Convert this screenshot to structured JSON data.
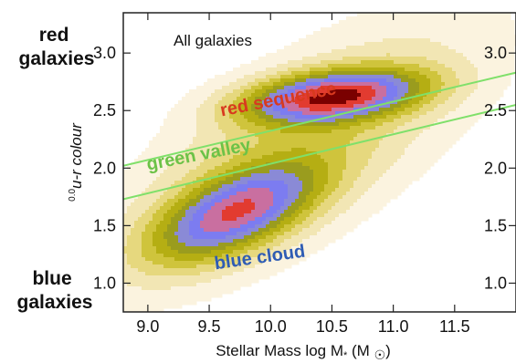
{
  "chart_data": {
    "type": "contour",
    "title": "All galaxies",
    "xlabel": "Stellar Mass log M* (M☉)",
    "ylabel": "0.0u-r colour",
    "ylabel_superscript": "0.0",
    "ylabel_text": "u-r colour",
    "xlim": [
      8.8,
      12.0
    ],
    "ylim": [
      0.75,
      3.35
    ],
    "x_ticks": [
      "9.0",
      "9.5",
      "10.0",
      "10.5",
      "11.0",
      "11.5"
    ],
    "x_tick_values": [
      9.0,
      9.5,
      10.0,
      10.5,
      11.0,
      11.5
    ],
    "y_ticks": [
      "1.0",
      "1.5",
      "2.0",
      "2.5",
      "3.0"
    ],
    "y_tick_values": [
      1.0,
      1.5,
      2.0,
      2.5,
      3.0
    ],
    "y_ticks_right": [
      "1.0",
      "1.5",
      "2.0",
      "2.5",
      "3.0"
    ],
    "side_labels": {
      "top": "red\ngalaxies",
      "bottom": "blue\ngalaxies"
    },
    "annotations": [
      {
        "text": "red sequence",
        "x": 9.6,
        "y": 2.45,
        "color": "#d83a1f",
        "rotate": -11
      },
      {
        "text": "green valley",
        "x": 9.0,
        "y": 1.98,
        "color": "#6cc247",
        "rotate": -11
      },
      {
        "text": "blue cloud",
        "x": 9.55,
        "y": 1.12,
        "color": "#2f5cb4",
        "rotate": -8
      }
    ],
    "green_valley_lines": [
      {
        "x": [
          8.8,
          12.0
        ],
        "y": [
          2.02,
          2.83
        ],
        "color": "#7fe06a"
      },
      {
        "x": [
          8.8,
          12.0
        ],
        "y": [
          1.73,
          2.55
        ],
        "color": "#7fe06a"
      }
    ],
    "peaks": [
      {
        "name": "red sequence peak",
        "x": 10.52,
        "y": 2.62
      },
      {
        "name": "blue cloud peak",
        "x": 9.72,
        "y": 1.62
      }
    ],
    "contour_levels": 11,
    "colormap": [
      "#ffffff",
      "#fbf3df",
      "#f2e6b4",
      "#e6d87e",
      "#cfc43c",
      "#b5ae13",
      "#9a9c1e",
      "#8a8ad6",
      "#7c7cf0",
      "#c96fa0",
      "#e23b30",
      "#7a0000"
    ],
    "grid": false,
    "legend": "none"
  }
}
